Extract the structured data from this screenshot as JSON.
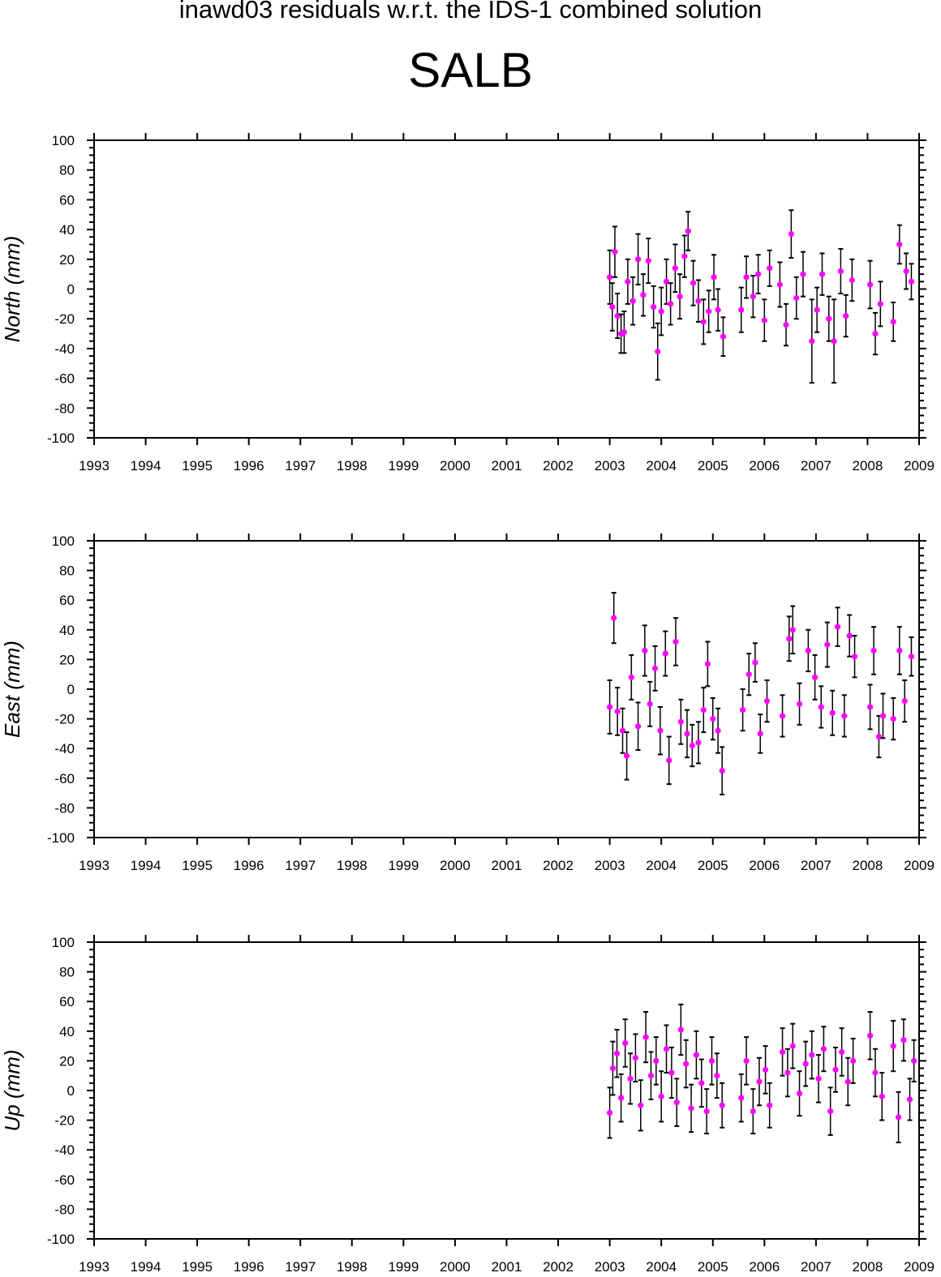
{
  "title": "inawd03 residuals w.r.t. the IDS-1 combined solution",
  "station": "SALB",
  "colors": {
    "points": "#ff00ff",
    "error_bars": "#000000",
    "axes": "#000000"
  },
  "chart_data": [
    {
      "type": "scatter",
      "panel": "north",
      "ylabel": "North (mm)",
      "xlim": [
        1993,
        2009
      ],
      "ylim": [
        -100,
        100
      ],
      "x_ticks": [
        1993,
        1994,
        1995,
        1996,
        1997,
        1998,
        1999,
        2000,
        2001,
        2002,
        2003,
        2004,
        2005,
        2006,
        2007,
        2008,
        2009
      ],
      "y_ticks": [
        -100,
        -80,
        -60,
        -40,
        -20,
        0,
        20,
        40,
        60,
        80,
        100
      ],
      "series": [
        {
          "points": [
            {
              "x": 2003.0,
              "y": 8,
              "err": 18
            },
            {
              "x": 2003.05,
              "y": -12,
              "err": 16
            },
            {
              "x": 2003.1,
              "y": 25,
              "err": 17
            },
            {
              "x": 2003.15,
              "y": -18,
              "err": 15
            },
            {
              "x": 2003.22,
              "y": -30,
              "err": 13
            },
            {
              "x": 2003.28,
              "y": -29,
              "err": 14
            },
            {
              "x": 2003.35,
              "y": 5,
              "err": 15
            },
            {
              "x": 2003.45,
              "y": -8,
              "err": 16
            },
            {
              "x": 2003.55,
              "y": 20,
              "err": 17
            },
            {
              "x": 2003.65,
              "y": -4,
              "err": 14
            },
            {
              "x": 2003.75,
              "y": 19,
              "err": 15
            },
            {
              "x": 2003.85,
              "y": -12,
              "err": 14
            },
            {
              "x": 2003.93,
              "y": -42,
              "err": 19
            },
            {
              "x": 2004.0,
              "y": -15,
              "err": 16
            },
            {
              "x": 2004.1,
              "y": 5,
              "err": 15
            },
            {
              "x": 2004.18,
              "y": -10,
              "err": 14
            },
            {
              "x": 2004.27,
              "y": 14,
              "err": 16
            },
            {
              "x": 2004.36,
              "y": -5,
              "err": 15
            },
            {
              "x": 2004.45,
              "y": 22,
              "err": 14
            },
            {
              "x": 2004.52,
              "y": 39,
              "err": 13
            },
            {
              "x": 2004.62,
              "y": 4,
              "err": 15
            },
            {
              "x": 2004.72,
              "y": -8,
              "err": 14
            },
            {
              "x": 2004.82,
              "y": -22,
              "err": 15
            },
            {
              "x": 2004.92,
              "y": -15,
              "err": 14
            },
            {
              "x": 2005.02,
              "y": 8,
              "err": 15
            },
            {
              "x": 2005.1,
              "y": -14,
              "err": 14
            },
            {
              "x": 2005.2,
              "y": -32,
              "err": 13
            },
            {
              "x": 2005.55,
              "y": -14,
              "err": 15
            },
            {
              "x": 2005.65,
              "y": 8,
              "err": 14
            },
            {
              "x": 2005.78,
              "y": -5,
              "err": 14
            },
            {
              "x": 2005.88,
              "y": 10,
              "err": 13
            },
            {
              "x": 2006.0,
              "y": -21,
              "err": 14
            },
            {
              "x": 2006.1,
              "y": 14,
              "err": 12
            },
            {
              "x": 2006.3,
              "y": 3,
              "err": 15
            },
            {
              "x": 2006.42,
              "y": -24,
              "err": 14
            },
            {
              "x": 2006.52,
              "y": 37,
              "err": 16
            },
            {
              "x": 2006.62,
              "y": -6,
              "err": 14
            },
            {
              "x": 2006.75,
              "y": 10,
              "err": 15
            },
            {
              "x": 2006.92,
              "y": -35,
              "err": 28
            },
            {
              "x": 2007.02,
              "y": -14,
              "err": 15
            },
            {
              "x": 2007.12,
              "y": 10,
              "err": 14
            },
            {
              "x": 2007.25,
              "y": -20,
              "err": 15
            },
            {
              "x": 2007.35,
              "y": -35,
              "err": 28
            },
            {
              "x": 2007.48,
              "y": 12,
              "err": 15
            },
            {
              "x": 2007.58,
              "y": -18,
              "err": 14
            },
            {
              "x": 2007.7,
              "y": 6,
              "err": 14
            },
            {
              "x": 2008.05,
              "y": 3,
              "err": 16
            },
            {
              "x": 2008.15,
              "y": -30,
              "err": 14
            },
            {
              "x": 2008.25,
              "y": -10,
              "err": 15
            },
            {
              "x": 2008.5,
              "y": -22,
              "err": 13
            },
            {
              "x": 2008.62,
              "y": 30,
              "err": 13
            },
            {
              "x": 2008.75,
              "y": 12,
              "err": 12
            },
            {
              "x": 2008.85,
              "y": 5,
              "err": 12
            }
          ]
        }
      ]
    },
    {
      "type": "scatter",
      "panel": "east",
      "ylabel": "East (mm)",
      "xlim": [
        1993,
        2009
      ],
      "ylim": [
        -100,
        100
      ],
      "x_ticks": [
        1993,
        1994,
        1995,
        1996,
        1997,
        1998,
        1999,
        2000,
        2001,
        2002,
        2003,
        2004,
        2005,
        2006,
        2007,
        2008,
        2009
      ],
      "y_ticks": [
        -100,
        -80,
        -60,
        -40,
        -20,
        0,
        20,
        40,
        60,
        80,
        100
      ],
      "series": [
        {
          "points": [
            {
              "x": 2003.0,
              "y": -12,
              "err": 18
            },
            {
              "x": 2003.08,
              "y": 48,
              "err": 17
            },
            {
              "x": 2003.15,
              "y": -15,
              "err": 16
            },
            {
              "x": 2003.25,
              "y": -28,
              "err": 15
            },
            {
              "x": 2003.33,
              "y": -45,
              "err": 16
            },
            {
              "x": 2003.42,
              "y": 8,
              "err": 15
            },
            {
              "x": 2003.55,
              "y": -25,
              "err": 16
            },
            {
              "x": 2003.68,
              "y": 26,
              "err": 17
            },
            {
              "x": 2003.78,
              "y": -10,
              "err": 15
            },
            {
              "x": 2003.88,
              "y": 14,
              "err": 15
            },
            {
              "x": 2003.98,
              "y": -28,
              "err": 16
            },
            {
              "x": 2004.08,
              "y": 24,
              "err": 15
            },
            {
              "x": 2004.15,
              "y": -48,
              "err": 16
            },
            {
              "x": 2004.28,
              "y": 32,
              "err": 16
            },
            {
              "x": 2004.38,
              "y": -22,
              "err": 15
            },
            {
              "x": 2004.5,
              "y": -30,
              "err": 16
            },
            {
              "x": 2004.6,
              "y": -38,
              "err": 14
            },
            {
              "x": 2004.72,
              "y": -36,
              "err": 14
            },
            {
              "x": 2004.82,
              "y": -14,
              "err": 15
            },
            {
              "x": 2004.9,
              "y": 17,
              "err": 15
            },
            {
              "x": 2005.0,
              "y": -20,
              "err": 14
            },
            {
              "x": 2005.1,
              "y": -28,
              "err": 15
            },
            {
              "x": 2005.18,
              "y": -55,
              "err": 16
            },
            {
              "x": 2005.58,
              "y": -14,
              "err": 14
            },
            {
              "x": 2005.7,
              "y": 10,
              "err": 14
            },
            {
              "x": 2005.82,
              "y": 18,
              "err": 13
            },
            {
              "x": 2005.92,
              "y": -30,
              "err": 13
            },
            {
              "x": 2006.05,
              "y": -8,
              "err": 14
            },
            {
              "x": 2006.35,
              "y": -18,
              "err": 14
            },
            {
              "x": 2006.48,
              "y": 34,
              "err": 15
            },
            {
              "x": 2006.55,
              "y": 40,
              "err": 16
            },
            {
              "x": 2006.68,
              "y": -10,
              "err": 14
            },
            {
              "x": 2006.85,
              "y": 26,
              "err": 14
            },
            {
              "x": 2006.98,
              "y": 8,
              "err": 15
            },
            {
              "x": 2007.1,
              "y": -12,
              "err": 14
            },
            {
              "x": 2007.22,
              "y": 30,
              "err": 15
            },
            {
              "x": 2007.32,
              "y": -16,
              "err": 15
            },
            {
              "x": 2007.42,
              "y": 42,
              "err": 13
            },
            {
              "x": 2007.55,
              "y": -18,
              "err": 14
            },
            {
              "x": 2007.65,
              "y": 36,
              "err": 14
            },
            {
              "x": 2007.75,
              "y": 22,
              "err": 14
            },
            {
              "x": 2008.05,
              "y": -12,
              "err": 15
            },
            {
              "x": 2008.12,
              "y": 26,
              "err": 16
            },
            {
              "x": 2008.22,
              "y": -32,
              "err": 14
            },
            {
              "x": 2008.3,
              "y": -18,
              "err": 15
            },
            {
              "x": 2008.5,
              "y": -20,
              "err": 14
            },
            {
              "x": 2008.62,
              "y": 26,
              "err": 16
            },
            {
              "x": 2008.72,
              "y": -8,
              "err": 14
            },
            {
              "x": 2008.85,
              "y": 22,
              "err": 13
            }
          ]
        }
      ]
    },
    {
      "type": "scatter",
      "panel": "up",
      "ylabel": "Up (mm)",
      "xlim": [
        1993,
        2009
      ],
      "ylim": [
        -100,
        100
      ],
      "x_ticks": [
        1993,
        1994,
        1995,
        1996,
        1997,
        1998,
        1999,
        2000,
        2001,
        2002,
        2003,
        2004,
        2005,
        2006,
        2007,
        2008,
        2009
      ],
      "y_ticks": [
        -100,
        -80,
        -60,
        -40,
        -20,
        0,
        20,
        40,
        60,
        80,
        100
      ],
      "series": [
        {
          "points": [
            {
              "x": 2003.0,
              "y": -15,
              "err": 17
            },
            {
              "x": 2003.06,
              "y": 15,
              "err": 18
            },
            {
              "x": 2003.14,
              "y": 25,
              "err": 16
            },
            {
              "x": 2003.22,
              "y": -5,
              "err": 16
            },
            {
              "x": 2003.3,
              "y": 32,
              "err": 16
            },
            {
              "x": 2003.4,
              "y": 8,
              "err": 17
            },
            {
              "x": 2003.5,
              "y": 22,
              "err": 16
            },
            {
              "x": 2003.6,
              "y": -10,
              "err": 17
            },
            {
              "x": 2003.7,
              "y": 36,
              "err": 17
            },
            {
              "x": 2003.8,
              "y": 10,
              "err": 16
            },
            {
              "x": 2003.9,
              "y": 20,
              "err": 16
            },
            {
              "x": 2004.0,
              "y": -4,
              "err": 17
            },
            {
              "x": 2004.1,
              "y": 28,
              "err": 16
            },
            {
              "x": 2004.2,
              "y": 12,
              "err": 17
            },
            {
              "x": 2004.3,
              "y": -8,
              "err": 16
            },
            {
              "x": 2004.38,
              "y": 41,
              "err": 17
            },
            {
              "x": 2004.48,
              "y": 18,
              "err": 16
            },
            {
              "x": 2004.58,
              "y": -12,
              "err": 16
            },
            {
              "x": 2004.68,
              "y": 24,
              "err": 16
            },
            {
              "x": 2004.78,
              "y": 5,
              "err": 16
            },
            {
              "x": 2004.88,
              "y": -14,
              "err": 15
            },
            {
              "x": 2004.98,
              "y": 20,
              "err": 16
            },
            {
              "x": 2005.08,
              "y": 10,
              "err": 15
            },
            {
              "x": 2005.18,
              "y": -10,
              "err": 15
            },
            {
              "x": 2005.55,
              "y": -5,
              "err": 16
            },
            {
              "x": 2005.65,
              "y": 20,
              "err": 16
            },
            {
              "x": 2005.78,
              "y": -14,
              "err": 15
            },
            {
              "x": 2005.9,
              "y": 6,
              "err": 16
            },
            {
              "x": 2006.02,
              "y": 14,
              "err": 16
            },
            {
              "x": 2006.1,
              "y": -10,
              "err": 15
            },
            {
              "x": 2006.35,
              "y": 26,
              "err": 16
            },
            {
              "x": 2006.45,
              "y": 12,
              "err": 16
            },
            {
              "x": 2006.55,
              "y": 30,
              "err": 15
            },
            {
              "x": 2006.68,
              "y": -2,
              "err": 15
            },
            {
              "x": 2006.8,
              "y": 18,
              "err": 15
            },
            {
              "x": 2006.92,
              "y": 24,
              "err": 16
            },
            {
              "x": 2007.05,
              "y": 8,
              "err": 16
            },
            {
              "x": 2007.15,
              "y": 28,
              "err": 15
            },
            {
              "x": 2007.28,
              "y": -14,
              "err": 16
            },
            {
              "x": 2007.38,
              "y": 14,
              "err": 15
            },
            {
              "x": 2007.5,
              "y": 26,
              "err": 16
            },
            {
              "x": 2007.62,
              "y": 6,
              "err": 16
            },
            {
              "x": 2007.72,
              "y": 20,
              "err": 15
            },
            {
              "x": 2008.05,
              "y": 37,
              "err": 16
            },
            {
              "x": 2008.15,
              "y": 12,
              "err": 16
            },
            {
              "x": 2008.28,
              "y": -4,
              "err": 16
            },
            {
              "x": 2008.5,
              "y": 30,
              "err": 17
            },
            {
              "x": 2008.6,
              "y": -18,
              "err": 17
            },
            {
              "x": 2008.7,
              "y": 34,
              "err": 14
            },
            {
              "x": 2008.82,
              "y": -6,
              "err": 14
            },
            {
              "x": 2008.9,
              "y": 20,
              "err": 14
            }
          ]
        }
      ]
    }
  ]
}
